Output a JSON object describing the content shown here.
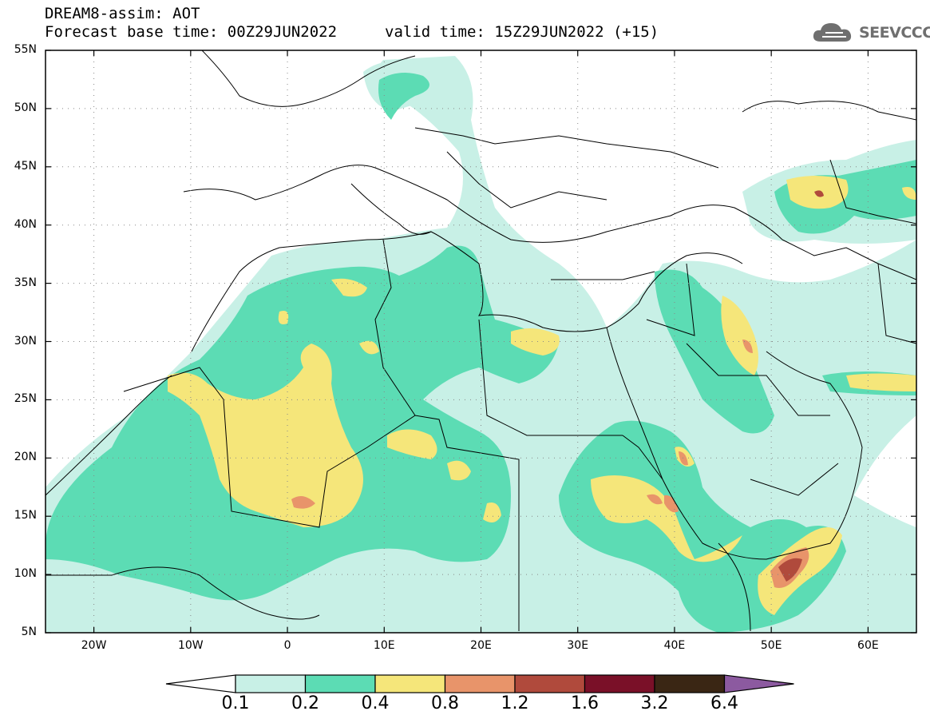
{
  "header": {
    "line1": "DREAM8-assim: AOT",
    "line2": "Forecast base time: 00Z29JUN2022",
    "valid": "valid time: 15Z29JUN2022 (+15)"
  },
  "logo": {
    "text": "SEEVCCC",
    "icon": "cloud-icon"
  },
  "map": {
    "lat_labels": [
      "55N",
      "50N",
      "45N",
      "40N",
      "35N",
      "30N",
      "25N",
      "20N",
      "15N",
      "10N",
      "5N"
    ],
    "lon_labels": [
      "20W",
      "10W",
      "0",
      "10E",
      "20E",
      "30E",
      "40E",
      "50E",
      "60E"
    ],
    "lat_range": [
      5,
      55
    ],
    "lon_range": [
      -25,
      65
    ],
    "gridlines": "dotted"
  },
  "colorbar": {
    "levels": [
      "0.1",
      "0.2",
      "0.4",
      "0.8",
      "1.2",
      "1.6",
      "3.2",
      "6.4"
    ],
    "colors": [
      "#ffffff",
      "#c8f0e6",
      "#5cdcb4",
      "#f5e67a",
      "#e8946a",
      "#b04a3c",
      "#7a1028",
      "#3a2614",
      "#8c5aa0"
    ]
  },
  "palette": {
    "c1": "#c8f0e6",
    "c2": "#5cdcb4",
    "c3": "#f5e67a",
    "c4": "#e8946a",
    "c5": "#b04a3c"
  }
}
